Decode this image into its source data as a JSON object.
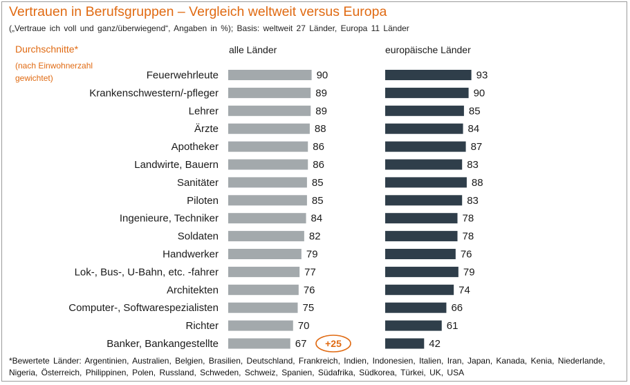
{
  "header": {
    "title": "Vertrauen in Berufsgruppen  – Vergleich weltweit versus Europa",
    "subtitle": "(„Vertraue ich voll und ganz/überwiegend“,  Angaben in %); Basis: weltweit  27 Länder,  Europa 11 Länder"
  },
  "legend": {
    "averages_label": "Durchschnitte*",
    "averages_note": "(nach Einwohnerzahl gewichtet)"
  },
  "annotation": {
    "text": "+25",
    "color": "#e06a12"
  },
  "footnote": "*Bewertete Länder: Argentinien, Australien, Belgien, Brasilien, Deutschland, Frankreich, Indien, Indonesien, Italien, Iran, Japan, Kanada, Kenia, Niederlande, Nigeria, Österreich, Philippinen, Polen, Russland, Schweden, Schweiz, Spanien, Südafrika, Südkorea, Türkei, UK, USA",
  "chart_data": {
    "type": "bar",
    "orientation": "horizontal",
    "title": "Vertrauen in Berufsgruppen  – Vergleich weltweit versus Europa",
    "xlim": [
      0,
      100
    ],
    "grid": false,
    "categories": [
      "Feuerwehrleute",
      "Krankenschwestern/-pfleger",
      "Lehrer",
      "Ärzte",
      "Apotheker",
      "Landwirte, Bauern",
      "Sanitäter",
      "Piloten",
      "Ingenieure, Techniker",
      "Soldaten",
      "Handwerker",
      "Lok-, Bus-, U-Bahn, etc. -fahrer",
      "Architekten",
      "Computer-, Softwarespezialisten",
      "Richter",
      "Banker, Bankangestellte"
    ],
    "series": [
      {
        "name": "alle Länder",
        "color": "#a3a9ac",
        "values": [
          90,
          89,
          89,
          88,
          86,
          86,
          85,
          85,
          84,
          82,
          79,
          77,
          76,
          75,
          70,
          67
        ]
      },
      {
        "name": "europäische Länder",
        "color": "#2f3e4a",
        "values": [
          93,
          90,
          85,
          84,
          87,
          83,
          88,
          83,
          78,
          78,
          76,
          79,
          74,
          66,
          61,
          42
        ]
      }
    ]
  }
}
